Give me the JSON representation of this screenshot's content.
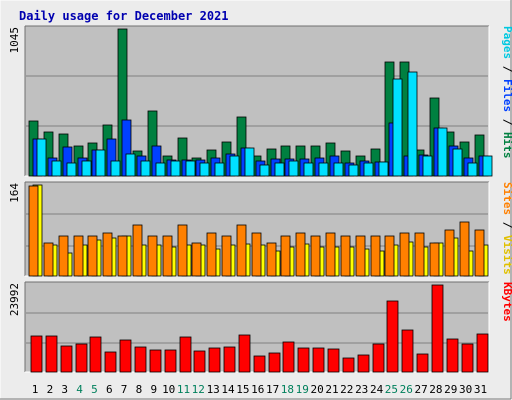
{
  "chart_data": {
    "type": "bar",
    "title": "Daily usage for December 2021",
    "categories": [
      "1",
      "2",
      "3",
      "4",
      "5",
      "6",
      "7",
      "8",
      "9",
      "10",
      "11",
      "12",
      "13",
      "14",
      "15",
      "16",
      "17",
      "18",
      "19",
      "20",
      "21",
      "22",
      "23",
      "24",
      "25",
      "26",
      "27",
      "28",
      "29",
      "30",
      "31"
    ],
    "weekend_days": [
      "4",
      "5",
      "11",
      "12",
      "18",
      "19",
      "25",
      "26"
    ],
    "colors": {
      "hits": "#008040",
      "files": "#0040ff",
      "pages": "#00e0ff",
      "visits": "#ffff00",
      "sites": "#ff8000",
      "kbytes": "#ff0000",
      "weekday_label": "#000000",
      "weekend_label": "#00805c",
      "title": "#0000b0"
    },
    "panels": [
      {
        "id": "hits",
        "ymax_label": "1045",
        "ymax": 1045,
        "legend": [
          {
            "text": "Pages",
            "color": "#00c8e0"
          },
          {
            "text": " / ",
            "color": "#000000"
          },
          {
            "text": "Files",
            "color": "#0040ff"
          },
          {
            "text": " / ",
            "color": "#000000"
          },
          {
            "text": "Hits",
            "color": "#008040"
          }
        ],
        "series": [
          {
            "name": "Hits",
            "color": "#008040",
            "values": [
              390,
              315,
              300,
              215,
              235,
              360,
              1045,
              175,
              465,
              145,
              270,
              130,
              185,
              240,
              420,
              140,
              195,
              215,
              210,
              215,
              235,
              175,
              145,
              190,
              810,
              810,
              185,
              555,
              315,
              240,
              290
            ]
          },
          {
            "name": "Files",
            "color": "#0040ff",
            "values": [
              260,
              130,
              205,
              130,
              185,
              260,
              400,
              140,
              210,
              115,
              115,
              115,
              125,
              155,
              200,
              110,
              120,
              120,
              120,
              125,
              145,
              95,
              110,
              100,
              375,
              145,
              150,
              340,
              210,
              130,
              145
            ]
          },
          {
            "name": "Pages",
            "color": "#00e0ff",
            "values": [
              260,
              105,
              95,
              105,
              185,
              105,
              155,
              105,
              95,
              105,
              105,
              95,
              95,
              145,
              200,
              75,
              95,
              105,
              95,
              95,
              95,
              75,
              95,
              100,
              690,
              740,
              145,
              340,
              195,
              95,
              145
            ]
          }
        ]
      },
      {
        "id": "visits",
        "ymax_label": "164",
        "ymax": 164,
        "legend": [
          {
            "text": "Sites",
            "color": "#ff8000"
          },
          {
            "text": " / ",
            "color": "#000000"
          },
          {
            "text": "Visits",
            "color": "#e0c000"
          }
        ],
        "series": [
          {
            "name": "Visits",
            "color": "#ffff00",
            "values": [
              164,
              55,
              42,
              55,
              65,
              68,
              72,
              55,
              55,
              52,
              55,
              55,
              48,
              55,
              58,
              55,
              45,
              52,
              58,
              52,
              52,
              52,
              48,
              45,
              55,
              62,
              52,
              60,
              68,
              45,
              55
            ]
          },
          {
            "name": "Sites",
            "color": "#ff8000",
            "values": [
              162,
              60,
              72,
              72,
              72,
              78,
              72,
              92,
              72,
              72,
              92,
              60,
              78,
              72,
              92,
              78,
              60,
              72,
              78,
              72,
              78,
              72,
              72,
              72,
              72,
              78,
              78,
              60,
              82,
              98,
              82
            ]
          }
        ]
      },
      {
        "id": "kbytes",
        "ymax_label": "23992",
        "ymax": 23992,
        "legend": [
          {
            "text": "KBytes",
            "color": "#ff0000"
          }
        ],
        "series": [
          {
            "name": "KBytes",
            "color": "#ff0000",
            "values": [
              9800,
              9800,
              7200,
              7800,
              9600,
              5500,
              8800,
              6900,
              6100,
              6100,
              9600,
              5700,
              6500,
              6900,
              10200,
              4500,
              5200,
              8200,
              6500,
              6500,
              6400,
              3800,
              4800,
              7600,
              19700,
              11500,
              4900,
              23992,
              9200,
              7800,
              10500
            ]
          }
        ]
      }
    ]
  }
}
